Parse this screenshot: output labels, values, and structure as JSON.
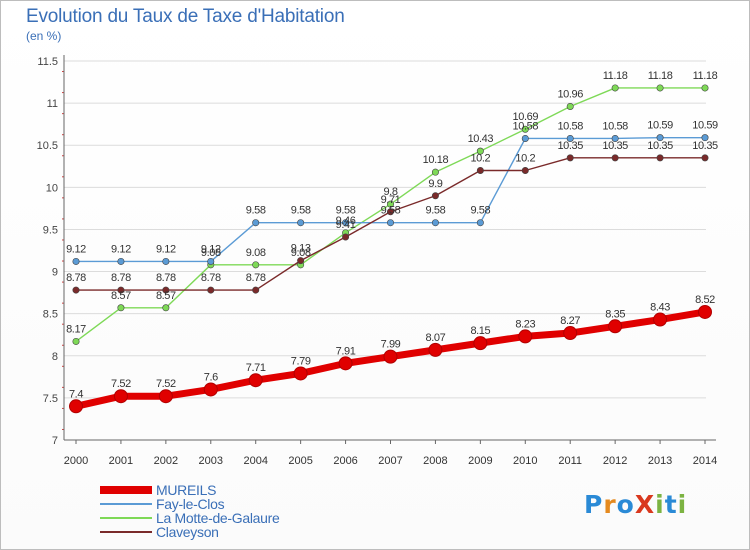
{
  "header": {
    "title": "Evolution du Taux de Taxe d'Habitation",
    "subtitle": "(en %)"
  },
  "logo": {
    "text": "ProXiti",
    "letters": [
      "P",
      "r",
      "o",
      "X",
      "i",
      "t",
      "i"
    ],
    "colors": [
      "#2a8ad6",
      "#e58a1f",
      "#2a8ad6",
      "#d9381e",
      "#7cb342",
      "#2a8ad6",
      "#7cb342"
    ]
  },
  "chart_data": {
    "type": "line",
    "title": "Evolution du Taux de Taxe d'Habitation",
    "ylabel": "(en %)",
    "xlabel": "",
    "ylim": [
      7,
      11.5
    ],
    "yticks": [
      7,
      7.5,
      8,
      8.5,
      9,
      9.5,
      10,
      10.5,
      11,
      11.5
    ],
    "ytick_labels": [
      "7",
      "7.5",
      "8",
      "8.5",
      "9",
      "9.5",
      "10",
      "10.5",
      "11",
      "11.5"
    ],
    "x": [
      "2000",
      "2001",
      "2002",
      "2003",
      "2004",
      "2005",
      "2006",
      "2007",
      "2008",
      "2009",
      "2010",
      "2011",
      "2012",
      "2013",
      "2014"
    ],
    "grid": "horizontal",
    "legend_position": "bottom-left",
    "series": [
      {
        "name": "MUREILS",
        "color": "#e00000",
        "values": [
          7.4,
          7.52,
          7.52,
          7.6,
          7.71,
          7.79,
          7.91,
          7.99,
          8.07,
          8.15,
          8.23,
          8.27,
          8.35,
          8.43,
          8.52
        ],
        "labels": [
          "7.4",
          "7.52",
          "7.52",
          "7.6",
          "7.71",
          "7.79",
          "7.91",
          "7.99",
          "8.07",
          "8.15",
          "8.23",
          "8.27",
          "8.35",
          "8.43",
          "8.52"
        ]
      },
      {
        "name": "Fay-le-Clos",
        "color": "#5b9bd5",
        "values": [
          9.12,
          9.12,
          9.12,
          9.12,
          9.58,
          9.58,
          9.58,
          9.58,
          9.58,
          9.58,
          10.58,
          10.58,
          10.58,
          10.59,
          10.59
        ],
        "labels": [
          "9.12",
          "9.12",
          "9.12",
          "9.12",
          "9.58",
          "9.58",
          "9.58",
          "9.58",
          "9.58",
          "9.58",
          "10.58",
          "10.58",
          "10.58",
          "10.59",
          "10.59"
        ]
      },
      {
        "name": "La Motte-de-Galaure",
        "color": "#7ed957",
        "values": [
          8.17,
          8.57,
          8.57,
          9.08,
          9.08,
          9.08,
          9.46,
          9.8,
          10.18,
          10.43,
          10.69,
          10.96,
          11.18,
          11.18,
          11.18
        ],
        "labels": [
          "8.17",
          "8.57",
          "8.57",
          "9.08",
          "9.08",
          "9.08",
          "9.46",
          "9.8",
          "10.18",
          "10.43",
          "10.69",
          "10.96",
          "11.18",
          "11.18",
          "11.18"
        ]
      },
      {
        "name": "Claveyson",
        "color": "#7a2a2a",
        "values": [
          8.78,
          8.78,
          8.78,
          8.78,
          8.78,
          9.13,
          9.41,
          9.71,
          9.9,
          10.2,
          10.2,
          10.35,
          10.35,
          10.35,
          10.35
        ],
        "labels": [
          "8.78",
          "8.78",
          "8.78",
          "8.78",
          "8.78",
          "9.13",
          "9.41",
          "9.71",
          "9.9",
          "10.2",
          "10.2",
          "10.35",
          "10.35",
          "10.35",
          "10.35"
        ]
      }
    ]
  }
}
